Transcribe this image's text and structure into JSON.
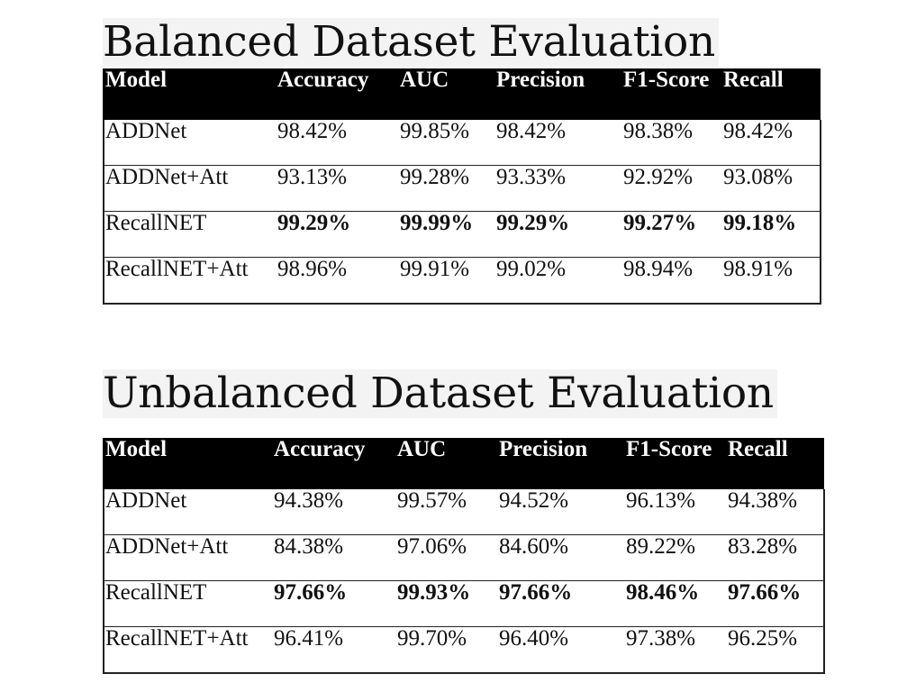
{
  "sections": [
    {
      "title": "Balanced Dataset Evaluation",
      "headers": [
        "Model",
        "Accuracy",
        "AUC",
        "Precision",
        "F1-Score",
        "Recall"
      ],
      "rows": [
        {
          "model": "ADDNet",
          "accuracy": "98.42%",
          "auc": "99.85%",
          "precision": "98.42%",
          "f1": "98.38%",
          "recall": "98.42%",
          "bold": false
        },
        {
          "model": "ADDNet+Att",
          "accuracy": "93.13%",
          "auc": "99.28%",
          "precision": "93.33%",
          "f1": "92.92%",
          "recall": "93.08%",
          "bold": false
        },
        {
          "model": "RecallNET",
          "accuracy": "99.29%",
          "auc": "99.99%",
          "precision": "99.29%",
          "f1": "99.27%",
          "recall": "99.18%",
          "bold": true
        },
        {
          "model": "RecallNET+Att",
          "accuracy": "98.96%",
          "auc": "99.91%",
          "precision": "99.02%",
          "f1": "98.94%",
          "recall": "98.91%",
          "bold": false
        }
      ]
    },
    {
      "title": "Unbalanced Dataset Evaluation",
      "headers": [
        "Model",
        "Accuracy",
        "AUC",
        "Precision",
        "F1-Score",
        "Recall"
      ],
      "rows": [
        {
          "model": "ADDNet",
          "accuracy": "94.38%",
          "auc": "99.57%",
          "precision": "94.52%",
          "f1": "96.13%",
          "recall": "94.38%",
          "bold": false
        },
        {
          "model": "ADDNet+Att",
          "accuracy": "84.38%",
          "auc": "97.06%",
          "precision": "84.60%",
          "f1": "89.22%",
          "recall": "83.28%",
          "bold": false
        },
        {
          "model": "RecallNET",
          "accuracy": "97.66%",
          "auc": "99.93%",
          "precision": "97.66%",
          "f1": "98.46%",
          "recall": "97.66%",
          "bold": true
        },
        {
          "model": "RecallNET+Att",
          "accuracy": "96.41%",
          "auc": "99.70%",
          "precision": "96.40%",
          "f1": "97.38%",
          "recall": "96.25%",
          "bold": false
        }
      ]
    }
  ],
  "colors": {
    "header_background": "#000000",
    "header_text": "#ffffff",
    "title_background": "#f3f3f3"
  }
}
